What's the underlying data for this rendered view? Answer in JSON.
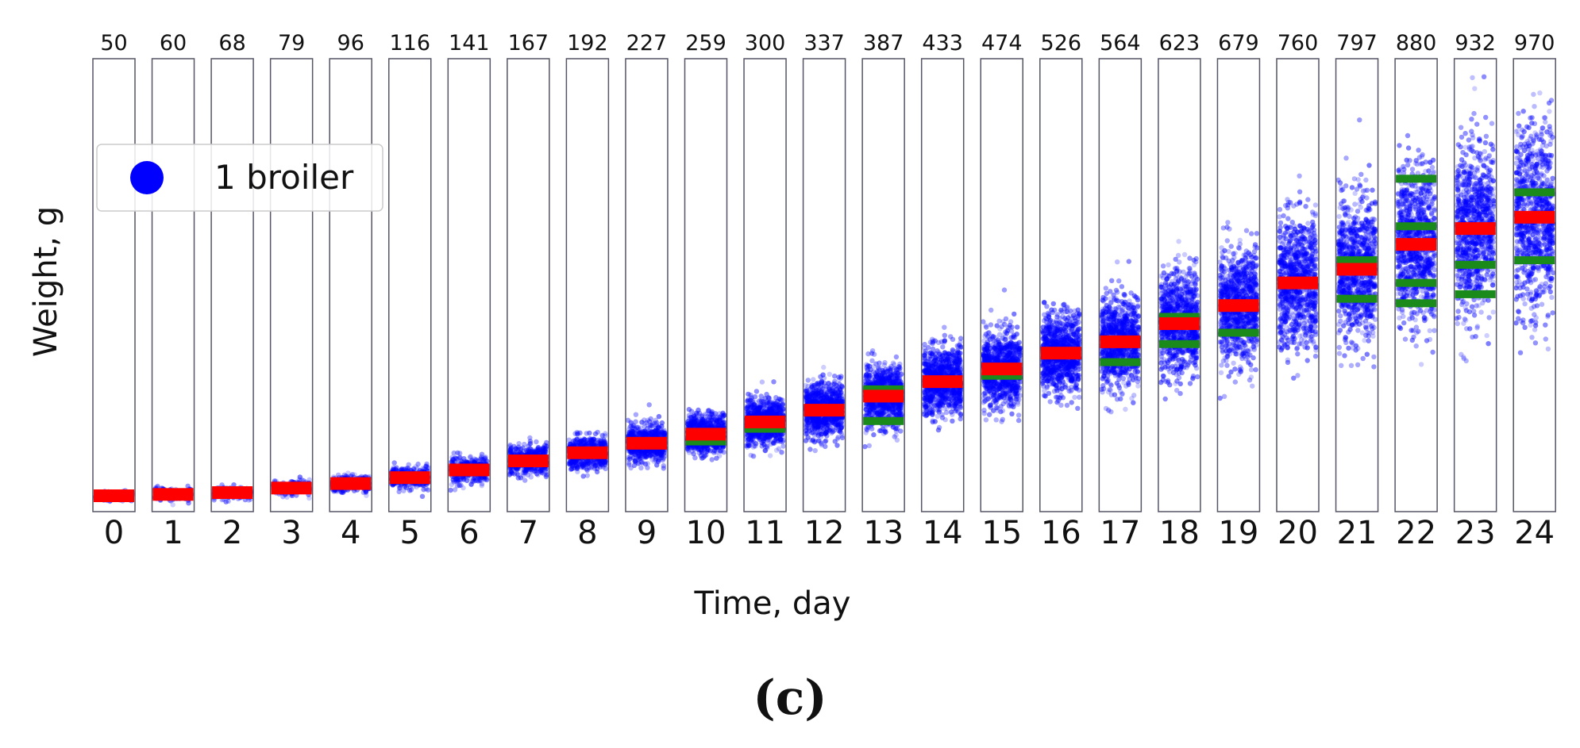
{
  "chart_data": {
    "type": "scatter",
    "title": "",
    "xlabel": "Time, day",
    "ylabel": "Weight, g",
    "caption": "(c)",
    "legend": {
      "label": "1 broiler",
      "placement": "upper-left"
    },
    "days": [
      "0",
      "1",
      "2",
      "3",
      "4",
      "5",
      "6",
      "7",
      "8",
      "9",
      "10",
      "11",
      "12",
      "13",
      "14",
      "15",
      "16",
      "17",
      "18",
      "19",
      "20",
      "21",
      "22",
      "23",
      "24"
    ],
    "counts": [
      50,
      60,
      68,
      79,
      96,
      116,
      141,
      167,
      192,
      227,
      259,
      300,
      337,
      387,
      433,
      474,
      526,
      564,
      623,
      679,
      760,
      797,
      880,
      932,
      970
    ],
    "ylim": [
      0,
      1
    ],
    "median": [
      0.035,
      0.038,
      0.042,
      0.052,
      0.062,
      0.075,
      0.092,
      0.112,
      0.13,
      0.151,
      0.171,
      0.198,
      0.224,
      0.255,
      0.287,
      0.315,
      0.35,
      0.375,
      0.415,
      0.455,
      0.505,
      0.535,
      0.59,
      0.625,
      0.65
    ],
    "spread": [
      0.01,
      0.012,
      0.013,
      0.014,
      0.016,
      0.02,
      0.024,
      0.028,
      0.032,
      0.036,
      0.04,
      0.045,
      0.052,
      0.06,
      0.066,
      0.074,
      0.082,
      0.09,
      0.1,
      0.11,
      0.13,
      0.14,
      0.16,
      0.17,
      0.18
    ],
    "green_bands": [
      [],
      [],
      [],
      [],
      [],
      [],
      [],
      [],
      [],
      [],
      [
        0.155
      ],
      [
        0.183
      ],
      [],
      [
        0.2,
        0.27
      ],
      [],
      [
        0.3
      ],
      [],
      [
        0.33
      ],
      [
        0.37,
        0.43
      ],
      [
        0.395
      ],
      [],
      [
        0.47,
        0.555
      ],
      [
        0.46,
        0.505,
        0.63,
        0.735
      ],
      [
        0.48,
        0.545
      ],
      [
        0.555,
        0.705
      ]
    ],
    "colors": {
      "points": "#0000ff",
      "median": "#ff0000",
      "band": "#1a8a1a",
      "frame": "#555566"
    }
  }
}
